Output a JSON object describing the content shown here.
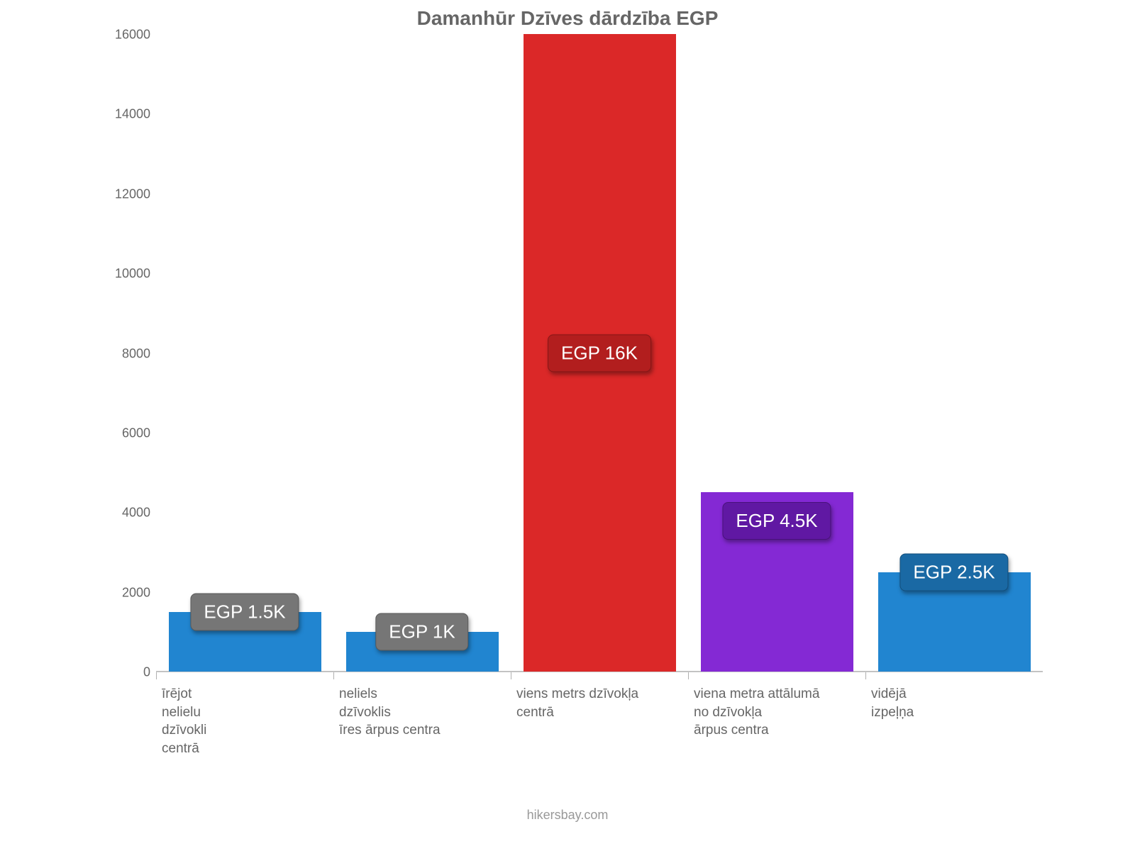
{
  "chart": {
    "type": "bar",
    "title": "Damanhūr Dzīves dārdzība EGP",
    "title_fontsize": 28,
    "title_color": "#666666",
    "background_color": "#ffffff",
    "axis_color": "#bdbdbd",
    "tick_label_color": "#666666",
    "tick_fontsize": 18,
    "x_label_fontsize": 19,
    "ylim": [
      0,
      16000
    ],
    "ytick_step": 2000,
    "yticks": [
      0,
      2000,
      4000,
      6000,
      8000,
      10000,
      12000,
      14000,
      16000
    ],
    "bar_width_pct": 86,
    "categories": [
      "īrējot\nnelielu\ndzīvokli\ncentrā",
      "neliels\ndzīvoklis\nīres ārpus centra",
      "viens metrs dzīvokļa\ncentrā",
      "viena metra attālumā\nno dzīvokļa\nārpus centra",
      "vidējā\nizpeļņa"
    ],
    "values": [
      1500,
      1000,
      16000,
      4500,
      2500
    ],
    "value_labels": [
      "EGP 1.5K",
      "EGP 1K",
      "EGP 16K",
      "EGP 4.5K",
      "EGP 2.5K"
    ],
    "bar_colors": [
      "#2185d0",
      "#2185d0",
      "#db2828",
      "#8429d4",
      "#2185d0"
    ],
    "label_bg_colors": [
      "#767676",
      "#767676",
      "#b21e1e",
      "#6018a3",
      "#1a69a4"
    ],
    "label_text_color": "#ffffff",
    "label_fontsize": 26,
    "label_offset_mode": [
      "top-overlap",
      "top-overlap",
      "center",
      "inside-top",
      "top-overlap"
    ]
  },
  "attribution": "hikersbay.com"
}
